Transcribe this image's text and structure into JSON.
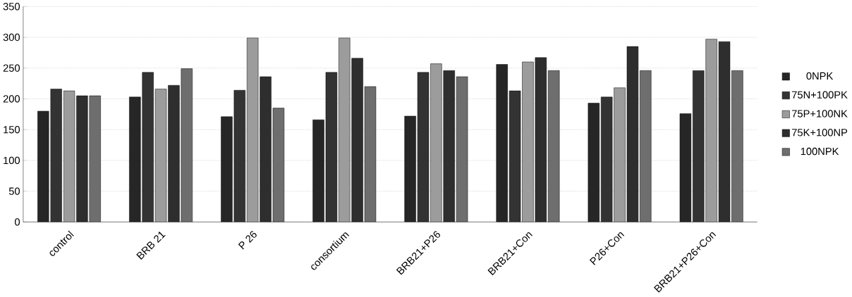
{
  "chart_data": {
    "type": "bar",
    "categories": [
      "control",
      "BRB 21",
      "P 26",
      "consortium",
      "BRB21+P26",
      "BRB21+Con",
      "P26+Con",
      "BRB21+P26+Con"
    ],
    "series": [
      {
        "name": "0NPK",
        "color": "#262626",
        "values": [
          180,
          203,
          171,
          166,
          172,
          256,
          193,
          176
        ]
      },
      {
        "name": "75N+100PK",
        "color": "#333333",
        "values": [
          216,
          243,
          214,
          243,
          243,
          213,
          203,
          246
        ]
      },
      {
        "name": "75P+100NK",
        "color": "#9c9c9c",
        "values": [
          213,
          216,
          299,
          299,
          257,
          260,
          218,
          297
        ]
      },
      {
        "name": "75K+100NP",
        "color": "#2e2e2e",
        "values": [
          205,
          222,
          236,
          266,
          246,
          267,
          285,
          293
        ]
      },
      {
        "name": "100NPK",
        "color": "#6e6e6e",
        "values": [
          205,
          249,
          185,
          220,
          236,
          246,
          246,
          246
        ]
      }
    ],
    "ylim": [
      0,
      350
    ],
    "yticks": [
      0,
      50,
      100,
      150,
      200,
      250,
      300,
      350
    ],
    "grid": "y",
    "legend": "right"
  }
}
